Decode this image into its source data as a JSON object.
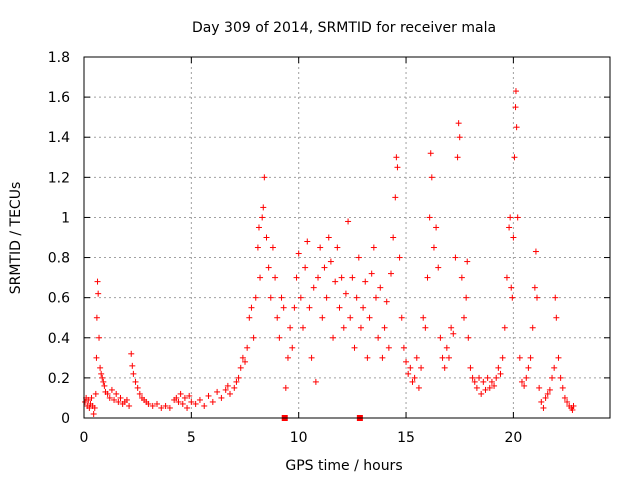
{
  "chart_data": {
    "type": "scatter",
    "title": "Day 309 of 2014, SRMTID for receiver mala",
    "xlabel": "GPS time / hours",
    "ylabel": "SRMTID / TECUs",
    "xlim": [
      0,
      24.5
    ],
    "ylim": [
      0,
      1.8
    ],
    "xticks": [
      0,
      5,
      10,
      15,
      20
    ],
    "yticks": [
      0,
      0.2,
      0.4,
      0.6,
      0.8,
      1,
      1.2,
      1.4,
      1.6,
      1.8
    ],
    "ytick_labels": [
      "0",
      "0.2",
      "0.4",
      "0.6",
      "0.8",
      "1",
      "1.2",
      "1.4",
      "1.6",
      "1.8"
    ],
    "grid": true,
    "marker": "+",
    "color": "#ff0000",
    "series": [
      {
        "name": "SRMTID",
        "points": [
          [
            0.05,
            0.08
          ],
          [
            0.1,
            0.1
          ],
          [
            0.15,
            0.06
          ],
          [
            0.2,
            0.09
          ],
          [
            0.25,
            0.05
          ],
          [
            0.3,
            0.07
          ],
          [
            0.35,
            0.1
          ],
          [
            0.4,
            0.06
          ],
          [
            0.45,
            0.02
          ],
          [
            0.5,
            0.05
          ],
          [
            0.55,
            0.12
          ],
          [
            0.58,
            0.3
          ],
          [
            0.6,
            0.5
          ],
          [
            0.63,
            0.68
          ],
          [
            0.66,
            0.62
          ],
          [
            0.7,
            0.4
          ],
          [
            0.75,
            0.25
          ],
          [
            0.8,
            0.22
          ],
          [
            0.85,
            0.2
          ],
          [
            0.9,
            0.18
          ],
          [
            0.95,
            0.16
          ],
          [
            1.0,
            0.13
          ],
          [
            1.1,
            0.12
          ],
          [
            1.2,
            0.1
          ],
          [
            1.3,
            0.14
          ],
          [
            1.4,
            0.09
          ],
          [
            1.5,
            0.12
          ],
          [
            1.6,
            0.08
          ],
          [
            1.7,
            0.1
          ],
          [
            1.8,
            0.07
          ],
          [
            1.9,
            0.08
          ],
          [
            2.0,
            0.09
          ],
          [
            2.1,
            0.06
          ],
          [
            2.2,
            0.32
          ],
          [
            2.25,
            0.26
          ],
          [
            2.3,
            0.22
          ],
          [
            2.4,
            0.18
          ],
          [
            2.5,
            0.15
          ],
          [
            2.6,
            0.12
          ],
          [
            2.7,
            0.1
          ],
          [
            2.8,
            0.09
          ],
          [
            2.9,
            0.08
          ],
          [
            3.0,
            0.07
          ],
          [
            3.2,
            0.06
          ],
          [
            3.4,
            0.07
          ],
          [
            3.6,
            0.05
          ],
          [
            3.8,
            0.06
          ],
          [
            4.0,
            0.05
          ],
          [
            4.2,
            0.09
          ],
          [
            4.3,
            0.1
          ],
          [
            4.4,
            0.08
          ],
          [
            4.5,
            0.12
          ],
          [
            4.6,
            0.07
          ],
          [
            4.7,
            0.1
          ],
          [
            4.8,
            0.05
          ],
          [
            4.9,
            0.11
          ],
          [
            5.0,
            0.08
          ],
          [
            5.2,
            0.07
          ],
          [
            5.4,
            0.09
          ],
          [
            5.6,
            0.06
          ],
          [
            5.8,
            0.11
          ],
          [
            6.0,
            0.08
          ],
          [
            6.2,
            0.13
          ],
          [
            6.4,
            0.1
          ],
          [
            6.6,
            0.14
          ],
          [
            6.7,
            0.16
          ],
          [
            6.8,
            0.12
          ],
          [
            7.0,
            0.15
          ],
          [
            7.1,
            0.18
          ],
          [
            7.2,
            0.2
          ],
          [
            7.3,
            0.25
          ],
          [
            7.4,
            0.3
          ],
          [
            7.5,
            0.28
          ],
          [
            7.6,
            0.35
          ],
          [
            7.7,
            0.5
          ],
          [
            7.8,
            0.55
          ],
          [
            7.9,
            0.4
          ],
          [
            8.0,
            0.6
          ],
          [
            8.1,
            0.85
          ],
          [
            8.15,
            0.95
          ],
          [
            8.2,
            0.7
          ],
          [
            8.3,
            1.0
          ],
          [
            8.35,
            1.05
          ],
          [
            8.4,
            1.2
          ],
          [
            8.5,
            0.9
          ],
          [
            8.6,
            0.75
          ],
          [
            8.7,
            0.6
          ],
          [
            8.8,
            0.85
          ],
          [
            8.9,
            0.7
          ],
          [
            9.0,
            0.5
          ],
          [
            9.1,
            0.4
          ],
          [
            9.2,
            0.6
          ],
          [
            9.3,
            0.55
          ],
          [
            9.4,
            0.15
          ],
          [
            9.5,
            0.3
          ],
          [
            9.6,
            0.45
          ],
          [
            9.7,
            0.35
          ],
          [
            9.8,
            0.55
          ],
          [
            9.9,
            0.7
          ],
          [
            10.0,
            0.82
          ],
          [
            10.1,
            0.6
          ],
          [
            10.2,
            0.45
          ],
          [
            10.3,
            0.75
          ],
          [
            10.4,
            0.88
          ],
          [
            10.5,
            0.55
          ],
          [
            10.6,
            0.3
          ],
          [
            10.7,
            0.65
          ],
          [
            10.8,
            0.18
          ],
          [
            10.9,
            0.7
          ],
          [
            11.0,
            0.85
          ],
          [
            11.1,
            0.5
          ],
          [
            11.2,
            0.75
          ],
          [
            11.3,
            0.6
          ],
          [
            11.4,
            0.9
          ],
          [
            11.5,
            0.78
          ],
          [
            11.6,
            0.4
          ],
          [
            11.7,
            0.68
          ],
          [
            11.8,
            0.85
          ],
          [
            11.9,
            0.55
          ],
          [
            12.0,
            0.7
          ],
          [
            12.1,
            0.45
          ],
          [
            12.2,
            0.62
          ],
          [
            12.3,
            0.98
          ],
          [
            12.4,
            0.5
          ],
          [
            12.5,
            0.7
          ],
          [
            12.6,
            0.35
          ],
          [
            12.7,
            0.6
          ],
          [
            12.8,
            0.8
          ],
          [
            12.9,
            0.45
          ],
          [
            13.0,
            0.55
          ],
          [
            13.1,
            0.68
          ],
          [
            13.2,
            0.3
          ],
          [
            13.3,
            0.5
          ],
          [
            13.4,
            0.72
          ],
          [
            13.5,
            0.85
          ],
          [
            13.6,
            0.6
          ],
          [
            13.7,
            0.4
          ],
          [
            13.8,
            0.65
          ],
          [
            13.9,
            0.3
          ],
          [
            14.0,
            0.45
          ],
          [
            14.1,
            0.58
          ],
          [
            14.2,
            0.35
          ],
          [
            14.3,
            0.72
          ],
          [
            14.4,
            0.9
          ],
          [
            14.5,
            1.1
          ],
          [
            14.55,
            1.3
          ],
          [
            14.6,
            1.25
          ],
          [
            14.7,
            0.8
          ],
          [
            14.8,
            0.5
          ],
          [
            14.9,
            0.35
          ],
          [
            15.0,
            0.28
          ],
          [
            15.1,
            0.22
          ],
          [
            15.2,
            0.25
          ],
          [
            15.3,
            0.18
          ],
          [
            15.4,
            0.2
          ],
          [
            15.5,
            0.3
          ],
          [
            15.6,
            0.15
          ],
          [
            15.7,
            0.25
          ],
          [
            15.8,
            0.5
          ],
          [
            15.9,
            0.45
          ],
          [
            16.0,
            0.7
          ],
          [
            16.1,
            1.0
          ],
          [
            16.15,
            1.32
          ],
          [
            16.2,
            1.2
          ],
          [
            16.3,
            0.85
          ],
          [
            16.4,
            0.95
          ],
          [
            16.5,
            0.75
          ],
          [
            16.6,
            0.4
          ],
          [
            16.7,
            0.3
          ],
          [
            16.8,
            0.25
          ],
          [
            16.9,
            0.35
          ],
          [
            17.0,
            0.3
          ],
          [
            17.1,
            0.45
          ],
          [
            17.2,
            0.42
          ],
          [
            17.3,
            0.8
          ],
          [
            17.4,
            1.3
          ],
          [
            17.45,
            1.47
          ],
          [
            17.5,
            1.4
          ],
          [
            17.6,
            0.7
          ],
          [
            17.7,
            0.5
          ],
          [
            17.8,
            0.6
          ],
          [
            17.85,
            0.78
          ],
          [
            17.9,
            0.4
          ],
          [
            18.0,
            0.25
          ],
          [
            18.1,
            0.2
          ],
          [
            18.2,
            0.18
          ],
          [
            18.3,
            0.15
          ],
          [
            18.4,
            0.2
          ],
          [
            18.5,
            0.12
          ],
          [
            18.6,
            0.18
          ],
          [
            18.7,
            0.14
          ],
          [
            18.8,
            0.2
          ],
          [
            18.9,
            0.15
          ],
          [
            19.0,
            0.18
          ],
          [
            19.1,
            0.16
          ],
          [
            19.2,
            0.2
          ],
          [
            19.3,
            0.25
          ],
          [
            19.4,
            0.22
          ],
          [
            19.5,
            0.3
          ],
          [
            19.6,
            0.45
          ],
          [
            19.7,
            0.7
          ],
          [
            19.8,
            0.95
          ],
          [
            19.85,
            1.0
          ],
          [
            19.9,
            0.65
          ],
          [
            19.95,
            0.6
          ],
          [
            20.0,
            0.9
          ],
          [
            20.05,
            1.3
          ],
          [
            20.1,
            1.55
          ],
          [
            20.12,
            1.63
          ],
          [
            20.15,
            1.45
          ],
          [
            20.2,
            1.0
          ],
          [
            20.3,
            0.3
          ],
          [
            20.4,
            0.18
          ],
          [
            20.5,
            0.16
          ],
          [
            20.6,
            0.2
          ],
          [
            20.7,
            0.25
          ],
          [
            20.8,
            0.3
          ],
          [
            20.9,
            0.45
          ],
          [
            21.0,
            0.65
          ],
          [
            21.05,
            0.83
          ],
          [
            21.1,
            0.6
          ],
          [
            21.2,
            0.15
          ],
          [
            21.3,
            0.08
          ],
          [
            21.4,
            0.05
          ],
          [
            21.5,
            0.1
          ],
          [
            21.6,
            0.12
          ],
          [
            21.7,
            0.14
          ],
          [
            21.8,
            0.2
          ],
          [
            21.9,
            0.25
          ],
          [
            21.95,
            0.6
          ],
          [
            22.0,
            0.5
          ],
          [
            22.1,
            0.3
          ],
          [
            22.2,
            0.2
          ],
          [
            22.3,
            0.15
          ],
          [
            22.4,
            0.1
          ],
          [
            22.5,
            0.08
          ],
          [
            22.6,
            0.06
          ],
          [
            22.7,
            0.05
          ],
          [
            22.75,
            0.04
          ],
          [
            22.8,
            0.06
          ]
        ]
      }
    ],
    "axis_markers": [
      {
        "x": 9.35,
        "y": 0
      },
      {
        "x": 12.85,
        "y": 0
      }
    ]
  }
}
